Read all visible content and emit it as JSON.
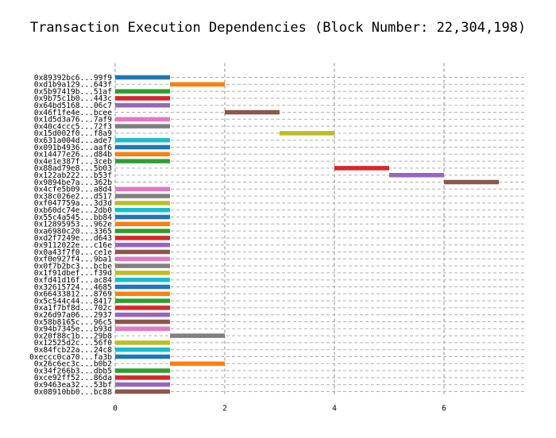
{
  "chart_data": {
    "type": "bar",
    "orientation": "horizontal-gantt",
    "title": "Transaction Execution Dependencies (Block Number: 22,304,198)",
    "xlabel": "",
    "ylabel": "",
    "xlim": [
      0,
      7.5
    ],
    "xticks": [
      0,
      2,
      4,
      6
    ],
    "grid": true,
    "palette": [
      "#1f77b4",
      "#ff7f0e",
      "#2ca02c",
      "#d62728",
      "#9467bd",
      "#8c564b",
      "#e377c2",
      "#7f7f7f",
      "#bcbd22",
      "#17becf"
    ],
    "transactions": [
      {
        "label": "0x89392bc6...99f9",
        "start": 0,
        "end": 1
      },
      {
        "label": "0xd1b9a129...643f",
        "start": 1,
        "end": 2
      },
      {
        "label": "0x5b97419b...51af",
        "start": 0,
        "end": 1
      },
      {
        "label": "0x9b75c1b0...443c",
        "start": 0,
        "end": 1
      },
      {
        "label": "0x64bd5168...06c7",
        "start": 0,
        "end": 1
      },
      {
        "label": "0x46f1fe4e...bcee",
        "start": 2,
        "end": 3
      },
      {
        "label": "0x1d5d3a76...7af9",
        "start": 0,
        "end": 1
      },
      {
        "label": "0x40c4ccc5...72f3",
        "start": 0,
        "end": 1
      },
      {
        "label": "0x15d002f0...f8a9",
        "start": 3,
        "end": 4
      },
      {
        "label": "0x631a004d...ade7",
        "start": 0,
        "end": 1
      },
      {
        "label": "0x091b4936...aaf6",
        "start": 0,
        "end": 1
      },
      {
        "label": "0x14477e26...d84b",
        "start": 0,
        "end": 1
      },
      {
        "label": "0x4e1e387f...3ceb",
        "start": 0,
        "end": 1
      },
      {
        "label": "0x88ad79e8...5b03",
        "start": 4,
        "end": 5
      },
      {
        "label": "0x122ab222...b53f",
        "start": 5,
        "end": 6
      },
      {
        "label": "0x9894be7a...362b",
        "start": 6,
        "end": 7
      },
      {
        "label": "0x4cfe5b09...a8d4",
        "start": 0,
        "end": 1
      },
      {
        "label": "0x38c026e2...d517",
        "start": 0,
        "end": 1
      },
      {
        "label": "0xf047759a...3d3d",
        "start": 0,
        "end": 1
      },
      {
        "label": "0xb60dc74e...2db0",
        "start": 0,
        "end": 1
      },
      {
        "label": "0x55c4a545...bb84",
        "start": 0,
        "end": 1
      },
      {
        "label": "0x12895953...962e",
        "start": 0,
        "end": 1
      },
      {
        "label": "0xa6980c20...3365",
        "start": 0,
        "end": 1
      },
      {
        "label": "0xd2f7249e...d643",
        "start": 0,
        "end": 1
      },
      {
        "label": "0x9112022e...c16e",
        "start": 0,
        "end": 1
      },
      {
        "label": "0x0a43f7f0...ce1e",
        "start": 0,
        "end": 1
      },
      {
        "label": "0xf0e927f4...9ba1",
        "start": 0,
        "end": 1
      },
      {
        "label": "0x0f7b2bc3...bcbe",
        "start": 0,
        "end": 1
      },
      {
        "label": "0x1f91dbef...f39d",
        "start": 0,
        "end": 1
      },
      {
        "label": "0xfd41d16f...ac84",
        "start": 0,
        "end": 1
      },
      {
        "label": "0x32615724...4685",
        "start": 0,
        "end": 1
      },
      {
        "label": "0x66433812...8769",
        "start": 0,
        "end": 1
      },
      {
        "label": "0x5c544c44...8417",
        "start": 0,
        "end": 1
      },
      {
        "label": "0xa1f7bf8d...702c",
        "start": 0,
        "end": 1
      },
      {
        "label": "0x26d97a06...2937",
        "start": 0,
        "end": 1
      },
      {
        "label": "0x58b8165c...96c5",
        "start": 0,
        "end": 1
      },
      {
        "label": "0x94b7345e...b93d",
        "start": 0,
        "end": 1
      },
      {
        "label": "0x20f88c1b...29b8",
        "start": 1,
        "end": 2
      },
      {
        "label": "0x12525d2c...56f0",
        "start": 0,
        "end": 1
      },
      {
        "label": "0x84fcb22a...24c8",
        "start": 0,
        "end": 1
      },
      {
        "label": "0xeccc0ca70...fa3b",
        "start": 0,
        "end": 1
      },
      {
        "label": "0x26c6ec3c...b0b2",
        "start": 1,
        "end": 2
      },
      {
        "label": "0x34f266b3...dbb5",
        "start": 0,
        "end": 1
      },
      {
        "label": "0xce92ff52...86da",
        "start": 0,
        "end": 1
      },
      {
        "label": "0x9463ea32...53bf",
        "start": 0,
        "end": 1
      },
      {
        "label": "0x08910bb0...bc88",
        "start": 0,
        "end": 1
      }
    ]
  }
}
